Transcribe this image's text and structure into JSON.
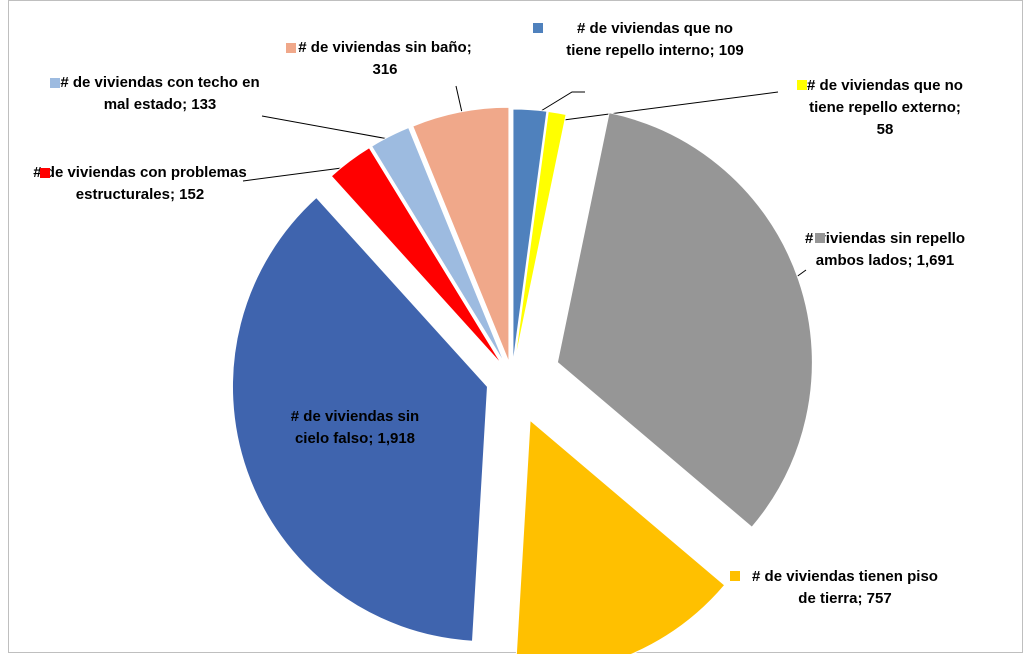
{
  "chart_data": {
    "type": "pie",
    "categories": [
      "# de viviendas que no tiene repello interno;",
      "# de viviendas que no tiene repello externo;",
      "# viviendas sin repello ambos lados;",
      "# de viviendas tienen piso de tierra;",
      "# de viviendas sin cielo falso;",
      "# de viviendas con problemas estructurales;",
      "# de viviendas con techo en mal estado;",
      "# de viviendas sin baño;"
    ],
    "values": [
      109,
      58,
      1691,
      757,
      1918,
      152,
      133,
      316
    ],
    "value_labels": [
      "109",
      "58",
      "1,691",
      "757",
      "1,918",
      "152",
      "133",
      "316"
    ],
    "colors": [
      "#4f81bd",
      "#ffff00",
      "#969696",
      "#ffc000",
      "#3f64ae",
      "#ff0000",
      "#9dbbe0",
      "#f0a88a"
    ]
  }
}
